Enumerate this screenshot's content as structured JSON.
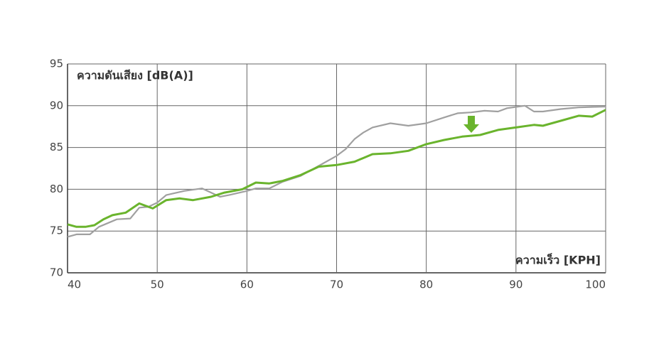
{
  "chart_data": {
    "type": "line",
    "ylabel": "ความดันเสียง [dB(A)]",
    "xlabel": "ความเร็ว [KPH]",
    "xlim": [
      40,
      100
    ],
    "xticks": [
      40,
      50,
      60,
      70,
      80,
      90,
      100
    ],
    "ylim": [
      70,
      95
    ],
    "yticks": [
      70,
      75,
      80,
      85,
      90,
      95
    ],
    "grid": true,
    "series": [
      {
        "color": "#a0a0a0",
        "x": [
          40,
          41,
          42.5,
          43.5,
          45.5,
          47,
          48,
          49,
          50,
          51,
          53,
          55,
          56,
          57,
          58,
          60,
          61,
          62.5,
          64,
          66,
          68,
          70,
          71,
          72,
          73,
          74,
          76,
          78,
          80,
          82,
          83.5,
          85,
          86.5,
          88,
          89,
          91,
          92,
          93,
          95,
          97,
          100
        ],
        "values": [
          74.3,
          74.6,
          74.6,
          75.5,
          76.4,
          76.5,
          77.8,
          77.9,
          78.4,
          79.3,
          79.8,
          80.1,
          79.6,
          79.1,
          79.3,
          79.8,
          80.1,
          80.1,
          80.9,
          81.6,
          82.8,
          84.0,
          84.8,
          86.0,
          86.8,
          87.4,
          87.9,
          87.6,
          87.9,
          88.6,
          89.1,
          89.2,
          89.4,
          89.3,
          89.7,
          90.0,
          89.3,
          89.3,
          89.6,
          89.8,
          89.9
        ]
      },
      {
        "color": "#6ab42d",
        "x": [
          40,
          41,
          42,
          43,
          44,
          45,
          46.5,
          48,
          49.5,
          51,
          52.5,
          54,
          56,
          57.5,
          59.5,
          61,
          62.5,
          64,
          66,
          68,
          70,
          72,
          74,
          76,
          78,
          80,
          82,
          84,
          86,
          88,
          90,
          92,
          93,
          95,
          97,
          98.5,
          100
        ],
        "values": [
          75.8,
          75.5,
          75.5,
          75.7,
          76.4,
          76.9,
          77.2,
          78.3,
          77.7,
          78.7,
          78.9,
          78.7,
          79.1,
          79.6,
          80.0,
          80.8,
          80.7,
          81.0,
          81.7,
          82.7,
          82.9,
          83.3,
          84.2,
          84.3,
          84.6,
          85.4,
          85.9,
          86.3,
          86.5,
          87.1,
          87.4,
          87.7,
          87.6,
          88.2,
          88.8,
          88.7,
          89.5
        ]
      }
    ]
  }
}
